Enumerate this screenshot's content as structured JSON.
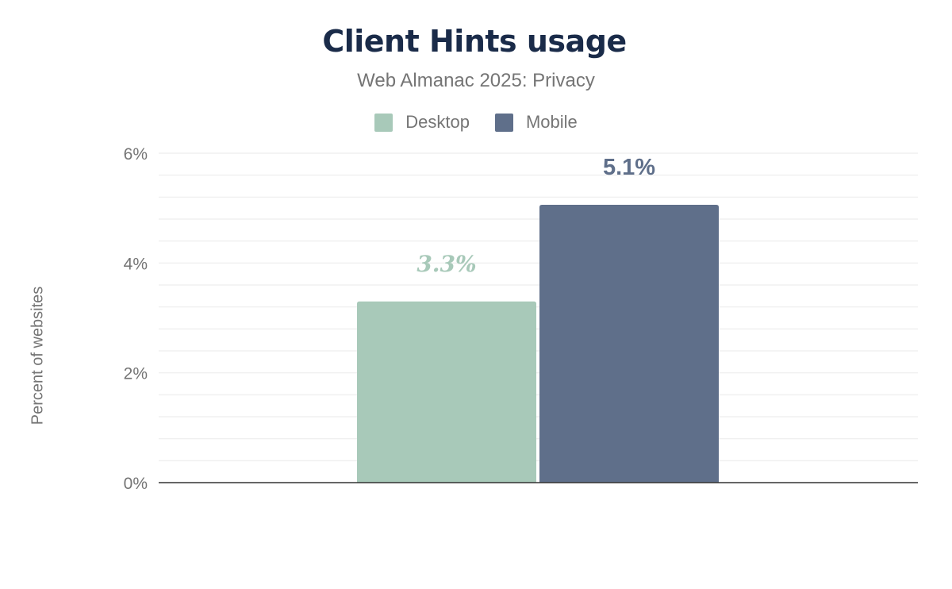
{
  "chart_data": {
    "type": "bar",
    "title": "Client Hints usage",
    "subtitle": "Web Almanac 2025: Privacy",
    "ylabel": "Percent of websites",
    "xlabel": "",
    "categories": [
      ""
    ],
    "series": [
      {
        "name": "Desktop",
        "values": [
          3.3
        ],
        "label": "3.3%",
        "color": "#a8c9b9"
      },
      {
        "name": "Mobile",
        "values": [
          5.06
        ],
        "label": "5.1%",
        "color": "#5f6f8a"
      }
    ],
    "ylim": [
      0,
      6
    ],
    "yticks": [
      {
        "value": 0,
        "label": "0%"
      },
      {
        "value": 2,
        "label": "2%"
      },
      {
        "value": 4,
        "label": "4%"
      },
      {
        "value": 6,
        "label": "6%"
      }
    ],
    "grid": true,
    "legend_position": "top-center"
  }
}
